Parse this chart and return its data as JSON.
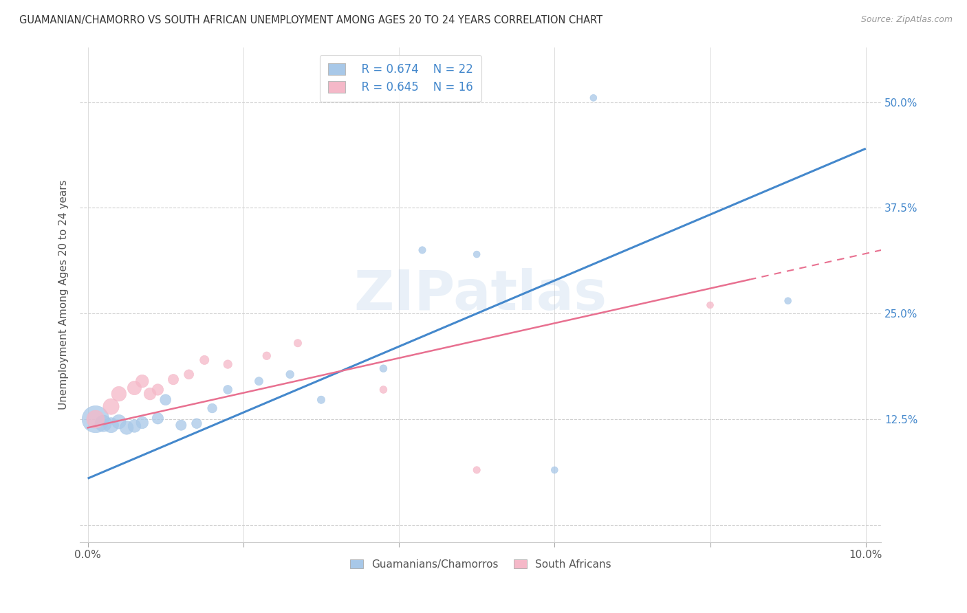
{
  "title": "GUAMANIAN/CHAMORRO VS SOUTH AFRICAN UNEMPLOYMENT AMONG AGES 20 TO 24 YEARS CORRELATION CHART",
  "source": "Source: ZipAtlas.com",
  "ylabel": "Unemployment Among Ages 20 to 24 years",
  "xlim": [
    -0.001,
    0.102
  ],
  "ylim": [
    -0.02,
    0.565
  ],
  "xticks": [
    0.0,
    0.02,
    0.04,
    0.06,
    0.08,
    0.1
  ],
  "xtick_labels": [
    "0.0%",
    "",
    "",
    "",
    "",
    "10.0%"
  ],
  "yticks": [
    0.0,
    0.125,
    0.25,
    0.375,
    0.5
  ],
  "ytick_labels_right": [
    "",
    "12.5%",
    "25.0%",
    "37.5%",
    "50.0%"
  ],
  "legend_r1": "R = 0.674",
  "legend_n1": "N = 22",
  "legend_r2": "R = 0.645",
  "legend_n2": "N = 16",
  "watermark": "ZIPatlas",
  "blue_color": "#a8c8e8",
  "pink_color": "#f5b8c8",
  "blue_line_color": "#4488cc",
  "pink_line_color": "#e87090",
  "blue_scatter": {
    "x": [
      0.001,
      0.002,
      0.003,
      0.004,
      0.005,
      0.006,
      0.007,
      0.009,
      0.01,
      0.012,
      0.014,
      0.016,
      0.018,
      0.022,
      0.026,
      0.03,
      0.038,
      0.043,
      0.05,
      0.06,
      0.065,
      0.09
    ],
    "y": [
      0.125,
      0.12,
      0.118,
      0.122,
      0.115,
      0.117,
      0.121,
      0.126,
      0.148,
      0.118,
      0.12,
      0.138,
      0.16,
      0.17,
      0.178,
      0.148,
      0.185,
      0.325,
      0.32,
      0.065,
      0.505,
      0.265
    ],
    "sizes": [
      800,
      300,
      250,
      220,
      200,
      180,
      160,
      140,
      130,
      120,
      110,
      95,
      85,
      75,
      70,
      65,
      60,
      55,
      50,
      50,
      50,
      50
    ]
  },
  "pink_scatter": {
    "x": [
      0.001,
      0.003,
      0.004,
      0.006,
      0.007,
      0.008,
      0.009,
      0.011,
      0.013,
      0.015,
      0.018,
      0.023,
      0.027,
      0.038,
      0.05,
      0.08
    ],
    "y": [
      0.125,
      0.14,
      0.155,
      0.162,
      0.17,
      0.155,
      0.16,
      0.172,
      0.178,
      0.195,
      0.19,
      0.2,
      0.215,
      0.16,
      0.065,
      0.26
    ],
    "sizes": [
      350,
      280,
      240,
      210,
      180,
      160,
      140,
      120,
      100,
      90,
      80,
      70,
      65,
      60,
      55,
      50
    ]
  },
  "blue_line": {
    "x": [
      0.0,
      0.1
    ],
    "y": [
      0.055,
      0.445
    ]
  },
  "pink_line_solid": {
    "x": [
      0.0,
      0.085
    ],
    "y": [
      0.115,
      0.29
    ]
  },
  "pink_line_dashed": {
    "x": [
      0.085,
      0.102
    ],
    "y": [
      0.29,
      0.325
    ]
  },
  "background_color": "#ffffff",
  "grid_color": "#d0d0d0"
}
